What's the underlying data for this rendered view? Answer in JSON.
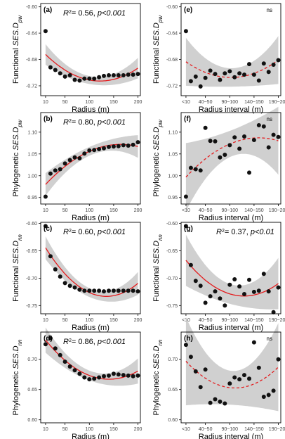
{
  "colors": {
    "point": "#111111",
    "fit": "#e41a1c",
    "band": "#c8c8c8",
    "frame": "#000000",
    "background": "#ffffff"
  },
  "chart_data": [
    {
      "id": "a",
      "type": "scatter",
      "panel_label": "(a)",
      "xlabel": "Radius (m)",
      "ylabel": "Functional SES.D",
      "ylabel_sub": "pw",
      "xlim": [
        0,
        205
      ],
      "ylim": [
        -0.735,
        -0.595
      ],
      "xticks": [
        10,
        50,
        100,
        150,
        200
      ],
      "xtick_labels": [
        "10",
        "50",
        "100",
        "150",
        "200"
      ],
      "yticks": [
        -0.72,
        -0.68,
        -0.64,
        -0.6
      ],
      "ytick_labels": [
        "-0.72",
        "-0.68",
        "-0.64",
        "-0.60"
      ],
      "annotation": {
        "r2": "0.56",
        "p": "p<0.001"
      },
      "fit": {
        "style": "solid",
        "band": 0.006
      },
      "x": [
        10,
        20,
        30,
        40,
        50,
        60,
        70,
        80,
        90,
        100,
        110,
        120,
        130,
        140,
        150,
        160,
        170,
        180,
        190,
        200
      ],
      "y": [
        -0.637,
        -0.692,
        -0.696,
        -0.701,
        -0.706,
        -0.704,
        -0.711,
        -0.712,
        -0.709,
        -0.709,
        -0.709,
        -0.707,
        -0.705,
        -0.704,
        -0.704,
        -0.704,
        -0.704,
        -0.703,
        -0.703,
        -0.702
      ]
    },
    {
      "id": "e",
      "type": "scatter",
      "panel_label": "(e)",
      "xlabel": "Radius interval (m)",
      "ylabel": "Functional SES.D",
      "ylabel_sub": "pw",
      "xlim": [
        0,
        205
      ],
      "ylim": [
        -0.735,
        -0.595
      ],
      "xticks": [
        10,
        50,
        100,
        150,
        200
      ],
      "xtick_labels": [
        "<10",
        "40~50",
        "90~100",
        "140~150",
        "190~200"
      ],
      "yticks": [
        -0.72,
        -0.68,
        -0.64,
        -0.6
      ],
      "ytick_labels": [
        "-0.72",
        "-0.68",
        "-0.64",
        "-0.60"
      ],
      "annotation_ns": "ns",
      "fit": {
        "style": "dashed",
        "band": 0.014
      },
      "x": [
        10,
        20,
        30,
        40,
        50,
        60,
        70,
        80,
        90,
        100,
        110,
        120,
        130,
        140,
        150,
        160,
        170,
        180,
        190,
        200
      ],
      "y": [
        -0.637,
        -0.713,
        -0.706,
        -0.721,
        -0.708,
        -0.697,
        -0.702,
        -0.711,
        -0.701,
        -0.698,
        -0.707,
        -0.701,
        -0.703,
        -0.687,
        -0.703,
        -0.712,
        -0.686,
        -0.699,
        -0.688,
        -0.681
      ]
    },
    {
      "id": "b",
      "type": "scatter",
      "panel_label": "(b)",
      "xlabel": "Radius (m)",
      "ylabel": "Phylogenetic SES.D",
      "ylabel_sub": "pw",
      "xlim": [
        0,
        205
      ],
      "ylim": [
        0.935,
        1.145
      ],
      "xticks": [
        10,
        50,
        100,
        150,
        200
      ],
      "xtick_labels": [
        "10",
        "50",
        "100",
        "150",
        "200"
      ],
      "yticks": [
        0.95,
        1.0,
        1.05,
        1.1
      ],
      "ytick_labels": [
        "0.95",
        "1.00",
        "1.05",
        "1.10"
      ],
      "annotation": {
        "r2": "0.80",
        "p": "p<0.001"
      },
      "fit": {
        "style": "solid",
        "band": 0.01
      },
      "x": [
        10,
        20,
        30,
        40,
        50,
        60,
        70,
        80,
        90,
        100,
        110,
        120,
        130,
        140,
        150,
        160,
        170,
        180,
        190,
        200
      ],
      "y": [
        0.952,
        1.005,
        1.012,
        1.015,
        1.028,
        1.036,
        1.042,
        1.04,
        1.051,
        1.058,
        1.059,
        1.061,
        1.063,
        1.066,
        1.067,
        1.068,
        1.07,
        1.069,
        1.071,
        1.077
      ]
    },
    {
      "id": "f",
      "type": "scatter",
      "panel_label": "(f)",
      "xlabel": "Radius interval (m)",
      "ylabel": "Phylogenetic SES.D",
      "ylabel_sub": "pw",
      "xlim": [
        0,
        205
      ],
      "ylim": [
        0.935,
        1.145
      ],
      "xticks": [
        10,
        50,
        100,
        150,
        200
      ],
      "xtick_labels": [
        "<10",
        "40~50",
        "90~100",
        "140~150",
        "190~200"
      ],
      "yticks": [
        0.95,
        1.0,
        1.05,
        1.1
      ],
      "ytick_labels": [
        "0.95",
        "1.00",
        "1.05",
        "1.10"
      ],
      "annotation_ns": "ns",
      "fit": {
        "style": "dashed",
        "band": 0.03
      },
      "x": [
        10,
        20,
        30,
        40,
        50,
        60,
        70,
        80,
        90,
        100,
        110,
        120,
        130,
        140,
        150,
        160,
        170,
        180,
        190,
        200
      ],
      "y": [
        0.952,
        1.018,
        1.015,
        1.012,
        1.11,
        1.08,
        1.079,
        1.042,
        1.048,
        1.07,
        1.088,
        1.062,
        1.09,
        1.007,
        1.082,
        1.116,
        1.113,
        1.065,
        1.094,
        1.089
      ]
    },
    {
      "id": "c",
      "type": "scatter",
      "panel_label": "(c)",
      "xlabel": "Radius (m)",
      "ylabel": "Functional SES.D",
      "ylabel_sub": "nn",
      "xlim": [
        0,
        205
      ],
      "ylim": [
        -0.765,
        -0.598
      ],
      "xticks": [
        10,
        50,
        100,
        150,
        200
      ],
      "xtick_labels": [
        "10",
        "50",
        "100",
        "150",
        "200"
      ],
      "yticks": [
        -0.75,
        -0.7,
        -0.65,
        -0.6
      ],
      "ytick_labels": [
        "-0.75",
        "-0.70",
        "-0.65",
        "-0.60"
      ],
      "annotation": {
        "r2": "0.60",
        "p": "p<0.001"
      },
      "fit": {
        "style": "solid",
        "band": 0.008
      },
      "x": [
        10,
        20,
        30,
        40,
        50,
        60,
        70,
        80,
        90,
        100,
        110,
        120,
        130,
        140,
        150,
        160,
        170,
        180,
        190,
        200
      ],
      "y": [
        -0.605,
        -0.66,
        -0.684,
        -0.697,
        -0.709,
        -0.714,
        -0.717,
        -0.721,
        -0.723,
        -0.723,
        -0.723,
        -0.723,
        -0.724,
        -0.723,
        -0.723,
        -0.723,
        -0.723,
        -0.723,
        -0.723,
        -0.724
      ]
    },
    {
      "id": "g",
      "type": "scatter",
      "panel_label": "(g)",
      "xlabel": "Radius interval (m)",
      "ylabel": "Functional SES.D",
      "ylabel_sub": "nn",
      "xlim": [
        0,
        205
      ],
      "ylim": [
        -0.765,
        -0.598
      ],
      "xticks": [
        10,
        50,
        100,
        150,
        200
      ],
      "xtick_labels": [
        "<10",
        "40~50",
        "90~100",
        "140~150",
        "190~200"
      ],
      "yticks": [
        -0.75,
        -0.7,
        -0.65,
        -0.6
      ],
      "ytick_labels": [
        "-0.75",
        "-0.70",
        "-0.65",
        "-0.60"
      ],
      "annotation": {
        "r2": "0.37",
        "p": "p<0.01"
      },
      "fit": {
        "style": "solid",
        "band": 0.018
      },
      "x": [
        10,
        20,
        30,
        40,
        50,
        60,
        70,
        80,
        90,
        100,
        110,
        120,
        130,
        140,
        150,
        160,
        170,
        180,
        190,
        200
      ],
      "y": [
        -0.605,
        -0.676,
        -0.705,
        -0.714,
        -0.745,
        -0.733,
        -0.724,
        -0.737,
        -0.75,
        -0.712,
        -0.702,
        -0.715,
        -0.729,
        -0.703,
        -0.725,
        -0.723,
        -0.692,
        -0.724,
        -0.762,
        -0.717
      ]
    },
    {
      "id": "d",
      "type": "scatter",
      "panel_label": "(d)",
      "xlabel": "Radius (m)",
      "ylabel": "Phylogenetic SES.D",
      "ylabel_sub": "nn",
      "xlim": [
        0,
        205
      ],
      "ylim": [
        0.595,
        0.745
      ],
      "xticks": [
        10,
        50,
        100,
        150,
        200
      ],
      "xtick_labels": [
        "10",
        "50",
        "100",
        "150",
        "200"
      ],
      "yticks": [
        0.6,
        0.65,
        0.7
      ],
      "ytick_labels": [
        "0.60",
        "0.65",
        "0.70"
      ],
      "annotation": {
        "r2": "0.86",
        "p": "p<0.001"
      },
      "fit": {
        "style": "solid",
        "band": 0.008
      },
      "x": [
        10,
        20,
        30,
        40,
        50,
        60,
        70,
        80,
        90,
        100,
        110,
        120,
        130,
        140,
        150,
        160,
        170,
        180,
        190,
        200
      ],
      "y": [
        0.725,
        0.735,
        0.718,
        0.707,
        0.696,
        0.688,
        0.682,
        0.676,
        0.67,
        0.667,
        0.668,
        0.67,
        0.672,
        0.673,
        0.676,
        0.675,
        0.674,
        0.673,
        0.672,
        0.673
      ]
    },
    {
      "id": "h",
      "type": "scatter",
      "panel_label": "(h)",
      "xlabel": "Radius interval (m)",
      "ylabel": "Phylogenetic SES.D",
      "ylabel_sub": "nn",
      "xlim": [
        0,
        205
      ],
      "ylim": [
        0.595,
        0.745
      ],
      "xticks": [
        10,
        50,
        100,
        150,
        200
      ],
      "xtick_labels": [
        "<10",
        "40~50",
        "90~100",
        "140~150",
        "190~200"
      ],
      "yticks": [
        0.6,
        0.65,
        0.7
      ],
      "ytick_labels": [
        "0.60",
        "0.65",
        "0.70"
      ],
      "annotation_ns": "ns",
      "fit": {
        "style": "dashed",
        "band": 0.028
      },
      "x": [
        10,
        20,
        30,
        40,
        50,
        60,
        70,
        80,
        90,
        100,
        110,
        120,
        130,
        140,
        150,
        160,
        170,
        180,
        190,
        200
      ],
      "y": [
        0.724,
        0.704,
        0.68,
        0.654,
        0.683,
        0.628,
        0.634,
        0.63,
        0.627,
        0.66,
        0.67,
        0.667,
        0.674,
        0.668,
        0.728,
        0.686,
        0.638,
        0.641,
        0.648,
        0.7
      ]
    }
  ]
}
